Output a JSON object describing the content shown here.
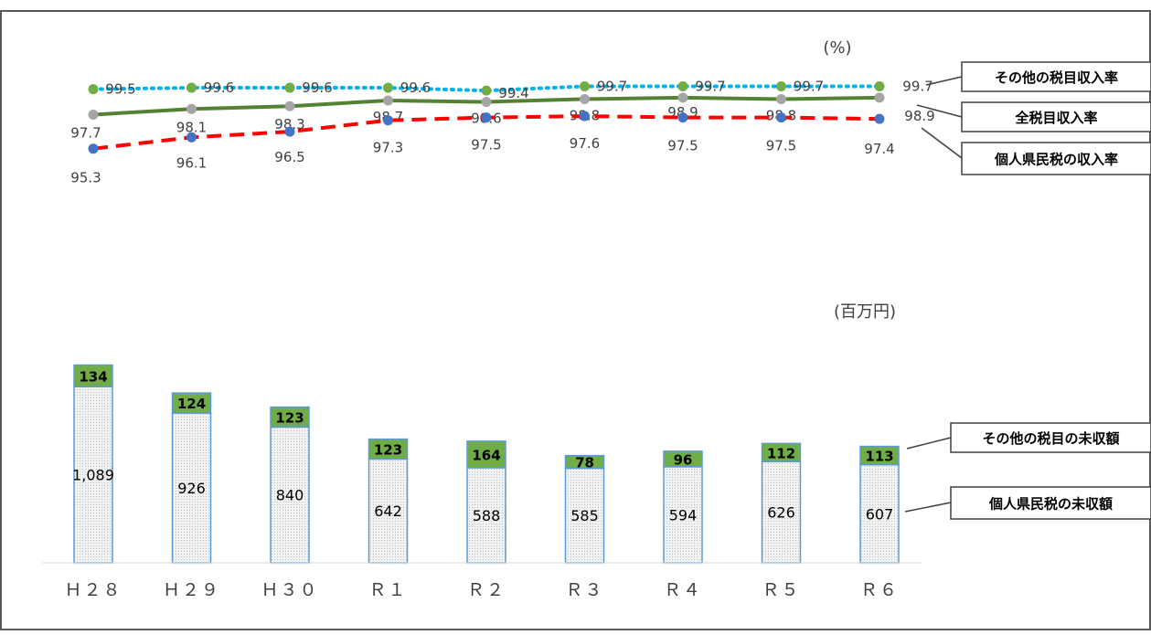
{
  "chart_data": [
    {
      "type": "line",
      "unit_label": "(%)",
      "categories": [
        "Ｈ２８",
        "Ｈ２９",
        "Ｈ３０",
        "Ｒ１",
        "Ｒ２",
        "Ｒ３",
        "Ｒ４",
        "Ｒ５",
        "Ｒ６"
      ],
      "series": [
        {
          "name": "その他の税目収入率",
          "values": [
            99.5,
            99.6,
            99.6,
            99.6,
            99.4,
            99.7,
            99.7,
            99.7,
            99.7
          ],
          "color": "#00b0f0",
          "marker_color": "#70ad47",
          "style": "dotted"
        },
        {
          "name": "全税目収入率",
          "values": [
            97.7,
            98.1,
            98.3,
            98.7,
            98.6,
            98.8,
            98.9,
            98.8,
            98.9
          ],
          "color": "#548235",
          "marker_color": "#a5a5a5",
          "style": "solid"
        },
        {
          "name": "個人県民税の収入率",
          "values": [
            95.3,
            96.1,
            96.5,
            97.3,
            97.5,
            97.6,
            97.5,
            97.5,
            97.4
          ],
          "color": "#ff0000",
          "marker_color": "#4472c4",
          "style": "dashed"
        }
      ]
    },
    {
      "type": "bar",
      "stacked": true,
      "unit_label": "(百万円)",
      "categories": [
        "Ｈ２８",
        "Ｈ２９",
        "Ｈ３０",
        "Ｒ１",
        "Ｒ２",
        "Ｒ３",
        "Ｒ４",
        "Ｒ５",
        "Ｒ６"
      ],
      "series": [
        {
          "name": "個人県民税の未収額",
          "values": [
            1089,
            926,
            840,
            642,
            588,
            585,
            594,
            626,
            607
          ],
          "labels": [
            "1,089",
            "926",
            "840",
            "642",
            "588",
            "585",
            "594",
            "626",
            "607"
          ],
          "color": "#e7e6e6",
          "border": "#5b9bd5"
        },
        {
          "name": "その他の税目の未収額",
          "values": [
            134,
            124,
            123,
            123,
            164,
            78,
            96,
            112,
            113
          ],
          "labels": [
            "134",
            "124",
            "123",
            "123",
            "164",
            "78",
            "96",
            "112",
            "113"
          ],
          "color": "#70ad47",
          "border": "#5b9bd5"
        }
      ]
    }
  ]
}
